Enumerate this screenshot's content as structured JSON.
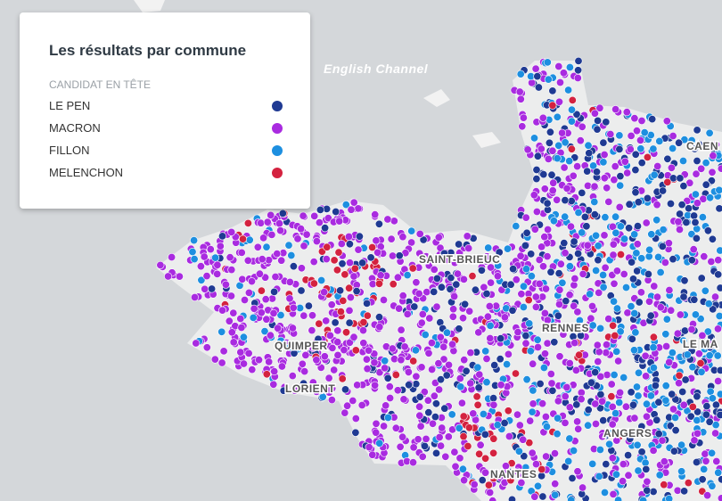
{
  "legend": {
    "title": "Les résultats par commune",
    "subtitle": "CANDIDAT EN TÊTE",
    "items": [
      {
        "label": "LE PEN",
        "color": "#1f3a93"
      },
      {
        "label": "MACRON",
        "color": "#a92be0"
      },
      {
        "label": "FILLON",
        "color": "#1d8fe0"
      },
      {
        "label": "MELENCHON",
        "color": "#d4223f"
      }
    ]
  },
  "map": {
    "sea_label": "English Channel",
    "cities": [
      "SAINT-BRIEUC",
      "QUIMPER",
      "LORIENT",
      "RENNES",
      "ANGERS",
      "NANTES",
      "CAEN",
      "LE MA"
    ]
  }
}
